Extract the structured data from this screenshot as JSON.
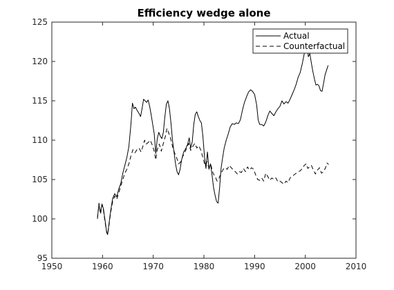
{
  "chart_data": {
    "type": "line",
    "title": "Efficiency wedge alone",
    "xlabel": "",
    "ylabel": "",
    "xlim": [
      1950,
      2010
    ],
    "ylim": [
      95,
      125
    ],
    "xticks": [
      1950,
      1960,
      1970,
      1980,
      1990,
      2000,
      2010
    ],
    "yticks": [
      95,
      100,
      105,
      110,
      115,
      120,
      125
    ],
    "grid": false,
    "legend_position": "top-right",
    "series": [
      {
        "name": "Actual",
        "style": "solid",
        "color": "#000000",
        "points": [
          [
            1959.0,
            100.2
          ],
          [
            1959.3,
            101.8
          ],
          [
            1959.6,
            100.8
          ],
          [
            1959.9,
            101.9
          ],
          [
            1960.2,
            101.2
          ],
          [
            1960.5,
            99.8
          ],
          [
            1960.8,
            98.4
          ],
          [
            1961.0,
            98.0
          ],
          [
            1961.3,
            99.5
          ],
          [
            1961.6,
            101.0
          ],
          [
            1962.0,
            102.6
          ],
          [
            1962.4,
            103.2
          ],
          [
            1962.8,
            102.8
          ],
          [
            1963.2,
            103.8
          ],
          [
            1963.6,
            104.5
          ],
          [
            1964.0,
            105.8
          ],
          [
            1964.4,
            106.8
          ],
          [
            1964.8,
            107.8
          ],
          [
            1965.2,
            109.2
          ],
          [
            1965.6,
            112.0
          ],
          [
            1965.9,
            114.7
          ],
          [
            1966.2,
            114.0
          ],
          [
            1966.5,
            114.2
          ],
          [
            1966.8,
            113.8
          ],
          [
            1967.2,
            113.4
          ],
          [
            1967.5,
            113.0
          ],
          [
            1967.8,
            114.0
          ],
          [
            1968.1,
            115.2
          ],
          [
            1968.4,
            115.0
          ],
          [
            1968.7,
            114.8
          ],
          [
            1969.0,
            115.1
          ],
          [
            1969.3,
            114.3
          ],
          [
            1969.6,
            113.2
          ],
          [
            1969.9,
            112.0
          ],
          [
            1970.2,
            110.8
          ],
          [
            1970.5,
            108.3
          ],
          [
            1970.8,
            110.2
          ],
          [
            1971.1,
            111.0
          ],
          [
            1971.4,
            110.5
          ],
          [
            1971.7,
            110.2
          ],
          [
            1972.0,
            111.0
          ],
          [
            1972.3,
            113.0
          ],
          [
            1972.6,
            114.6
          ],
          [
            1972.9,
            115.0
          ],
          [
            1973.2,
            114.0
          ],
          [
            1973.5,
            112.2
          ],
          [
            1973.8,
            110.0
          ],
          [
            1974.1,
            108.5
          ],
          [
            1974.4,
            107.0
          ],
          [
            1974.7,
            106.0
          ],
          [
            1975.0,
            105.6
          ],
          [
            1975.3,
            106.3
          ],
          [
            1975.6,
            107.5
          ],
          [
            1976.0,
            108.5
          ],
          [
            1976.4,
            108.9
          ],
          [
            1976.8,
            109.5
          ],
          [
            1977.1,
            110.3
          ],
          [
            1977.4,
            109.0
          ],
          [
            1977.7,
            109.8
          ],
          [
            1978.0,
            112.0
          ],
          [
            1978.3,
            113.3
          ],
          [
            1978.6,
            113.6
          ],
          [
            1978.9,
            113.0
          ],
          [
            1979.2,
            112.5
          ],
          [
            1979.5,
            112.2
          ],
          [
            1979.8,
            110.5
          ],
          [
            1980.1,
            108.0
          ],
          [
            1980.4,
            106.4
          ],
          [
            1980.7,
            108.5
          ],
          [
            1981.0,
            106.3
          ],
          [
            1981.3,
            107.0
          ],
          [
            1981.6,
            105.6
          ],
          [
            1981.9,
            104.0
          ],
          [
            1982.2,
            103.0
          ],
          [
            1982.5,
            102.2
          ],
          [
            1982.8,
            102.0
          ],
          [
            1983.1,
            104.0
          ],
          [
            1983.4,
            106.5
          ],
          [
            1983.7,
            107.8
          ],
          [
            1984.0,
            109.0
          ],
          [
            1984.4,
            110.0
          ],
          [
            1984.8,
            110.8
          ],
          [
            1985.2,
            111.7
          ],
          [
            1985.6,
            112.1
          ],
          [
            1986.0,
            112.0
          ],
          [
            1986.4,
            112.2
          ],
          [
            1986.8,
            112.1
          ],
          [
            1987.2,
            112.6
          ],
          [
            1987.6,
            113.8
          ],
          [
            1988.0,
            114.8
          ],
          [
            1988.4,
            115.5
          ],
          [
            1988.8,
            116.1
          ],
          [
            1989.2,
            116.4
          ],
          [
            1989.6,
            116.2
          ],
          [
            1990.0,
            115.8
          ],
          [
            1990.4,
            114.5
          ],
          [
            1990.7,
            112.6
          ],
          [
            1991.0,
            112.0
          ],
          [
            1991.4,
            112.0
          ],
          [
            1991.8,
            111.8
          ],
          [
            1992.2,
            112.3
          ],
          [
            1992.6,
            113.1
          ],
          [
            1993.0,
            113.7
          ],
          [
            1993.4,
            113.4
          ],
          [
            1993.8,
            113.1
          ],
          [
            1994.2,
            113.6
          ],
          [
            1994.6,
            114.0
          ],
          [
            1995.0,
            114.3
          ],
          [
            1995.4,
            115.0
          ],
          [
            1995.8,
            114.6
          ],
          [
            1996.2,
            114.9
          ],
          [
            1996.6,
            114.7
          ],
          [
            1997.0,
            115.2
          ],
          [
            1997.4,
            115.8
          ],
          [
            1997.8,
            116.4
          ],
          [
            1998.2,
            117.1
          ],
          [
            1998.6,
            118.0
          ],
          [
            1999.0,
            118.6
          ],
          [
            1999.4,
            119.7
          ],
          [
            1999.8,
            121.0
          ],
          [
            2000.2,
            121.3
          ],
          [
            2000.4,
            121.8
          ],
          [
            2000.6,
            120.6
          ],
          [
            2000.9,
            121.0
          ],
          [
            2001.2,
            119.8
          ],
          [
            2001.5,
            118.7
          ],
          [
            2001.8,
            117.8
          ],
          [
            2002.1,
            117.0
          ],
          [
            2002.4,
            117.1
          ],
          [
            2002.7,
            116.9
          ],
          [
            2003.0,
            116.3
          ],
          [
            2003.3,
            116.2
          ],
          [
            2003.6,
            117.2
          ],
          [
            2003.9,
            118.3
          ],
          [
            2004.2,
            118.9
          ],
          [
            2004.5,
            119.5
          ]
        ]
      },
      {
        "name": "Counterfactual",
        "style": "dashed",
        "color": "#000000",
        "points": [
          [
            1959.0,
            100.0
          ],
          [
            1959.3,
            102.0
          ],
          [
            1959.6,
            100.6
          ],
          [
            1959.9,
            101.8
          ],
          [
            1960.2,
            101.0
          ],
          [
            1960.5,
            99.6
          ],
          [
            1960.8,
            98.3
          ],
          [
            1961.0,
            98.0
          ],
          [
            1961.3,
            99.3
          ],
          [
            1961.6,
            100.8
          ],
          [
            1962.0,
            102.2
          ],
          [
            1962.4,
            102.9
          ],
          [
            1962.8,
            102.5
          ],
          [
            1963.2,
            103.3
          ],
          [
            1963.6,
            104.2
          ],
          [
            1964.0,
            105.0
          ],
          [
            1964.4,
            105.8
          ],
          [
            1964.8,
            106.3
          ],
          [
            1965.2,
            107.0
          ],
          [
            1965.6,
            108.0
          ],
          [
            1966.0,
            108.8
          ],
          [
            1966.4,
            108.4
          ],
          [
            1966.8,
            108.8
          ],
          [
            1967.2,
            109.0
          ],
          [
            1967.6,
            108.5
          ],
          [
            1968.0,
            109.3
          ],
          [
            1968.3,
            110.0
          ],
          [
            1968.6,
            109.5
          ],
          [
            1969.0,
            109.7
          ],
          [
            1969.4,
            110.0
          ],
          [
            1969.8,
            109.4
          ],
          [
            1970.2,
            108.6
          ],
          [
            1970.5,
            107.5
          ],
          [
            1970.8,
            108.8
          ],
          [
            1971.2,
            109.5
          ],
          [
            1971.6,
            108.6
          ],
          [
            1972.0,
            109.6
          ],
          [
            1972.4,
            110.5
          ],
          [
            1972.7,
            111.5
          ],
          [
            1973.0,
            111.0
          ],
          [
            1973.4,
            110.3
          ],
          [
            1973.8,
            109.2
          ],
          [
            1974.2,
            108.4
          ],
          [
            1974.6,
            107.8
          ],
          [
            1975.0,
            107.0
          ],
          [
            1975.4,
            107.2
          ],
          [
            1975.8,
            107.9
          ],
          [
            1976.2,
            108.4
          ],
          [
            1976.6,
            109.0
          ],
          [
            1977.0,
            109.6
          ],
          [
            1977.4,
            108.7
          ],
          [
            1977.8,
            109.2
          ],
          [
            1978.2,
            109.6
          ],
          [
            1978.6,
            109.0
          ],
          [
            1979.0,
            109.3
          ],
          [
            1979.4,
            108.7
          ],
          [
            1979.8,
            107.8
          ],
          [
            1980.2,
            106.8
          ],
          [
            1980.6,
            107.3
          ],
          [
            1981.0,
            106.4
          ],
          [
            1981.4,
            106.8
          ],
          [
            1981.8,
            105.8
          ],
          [
            1982.2,
            105.4
          ],
          [
            1982.6,
            104.8
          ],
          [
            1983.0,
            105.2
          ],
          [
            1983.4,
            105.8
          ],
          [
            1983.8,
            106.3
          ],
          [
            1984.2,
            106.5
          ],
          [
            1984.6,
            106.3
          ],
          [
            1985.0,
            106.8
          ],
          [
            1985.4,
            106.5
          ],
          [
            1985.8,
            106.2
          ],
          [
            1986.2,
            106.0
          ],
          [
            1986.6,
            105.7
          ],
          [
            1987.0,
            106.0
          ],
          [
            1987.4,
            105.9
          ],
          [
            1987.8,
            106.4
          ],
          [
            1988.2,
            106.0
          ],
          [
            1988.6,
            106.6
          ],
          [
            1989.0,
            106.2
          ],
          [
            1989.4,
            106.5
          ],
          [
            1989.8,
            106.3
          ],
          [
            1990.2,
            105.6
          ],
          [
            1990.6,
            105.0
          ],
          [
            1991.0,
            104.9
          ],
          [
            1991.4,
            105.2
          ],
          [
            1991.8,
            104.8
          ],
          [
            1992.2,
            105.8
          ],
          [
            1992.6,
            105.4
          ],
          [
            1993.0,
            104.9
          ],
          [
            1993.4,
            105.2
          ],
          [
            1993.8,
            105.0
          ],
          [
            1994.2,
            105.2
          ],
          [
            1994.6,
            104.7
          ],
          [
            1995.0,
            104.8
          ],
          [
            1995.4,
            104.6
          ],
          [
            1995.8,
            104.4
          ],
          [
            1996.2,
            104.8
          ],
          [
            1996.6,
            104.6
          ],
          [
            1997.0,
            105.2
          ],
          [
            1997.4,
            105.4
          ],
          [
            1997.8,
            105.6
          ],
          [
            1998.2,
            105.8
          ],
          [
            1998.6,
            106.0
          ],
          [
            1999.0,
            106.1
          ],
          [
            1999.4,
            106.4
          ],
          [
            1999.8,
            106.8
          ],
          [
            2000.2,
            107.0
          ],
          [
            2000.5,
            106.4
          ],
          [
            2000.8,
            106.6
          ],
          [
            2001.2,
            106.8
          ],
          [
            2001.6,
            106.2
          ],
          [
            2002.0,
            105.7
          ],
          [
            2002.4,
            106.2
          ],
          [
            2002.8,
            106.5
          ],
          [
            2003.2,
            105.8
          ],
          [
            2003.6,
            106.0
          ],
          [
            2004.0,
            106.5
          ],
          [
            2004.3,
            107.1
          ],
          [
            2004.6,
            106.9
          ]
        ]
      }
    ]
  }
}
